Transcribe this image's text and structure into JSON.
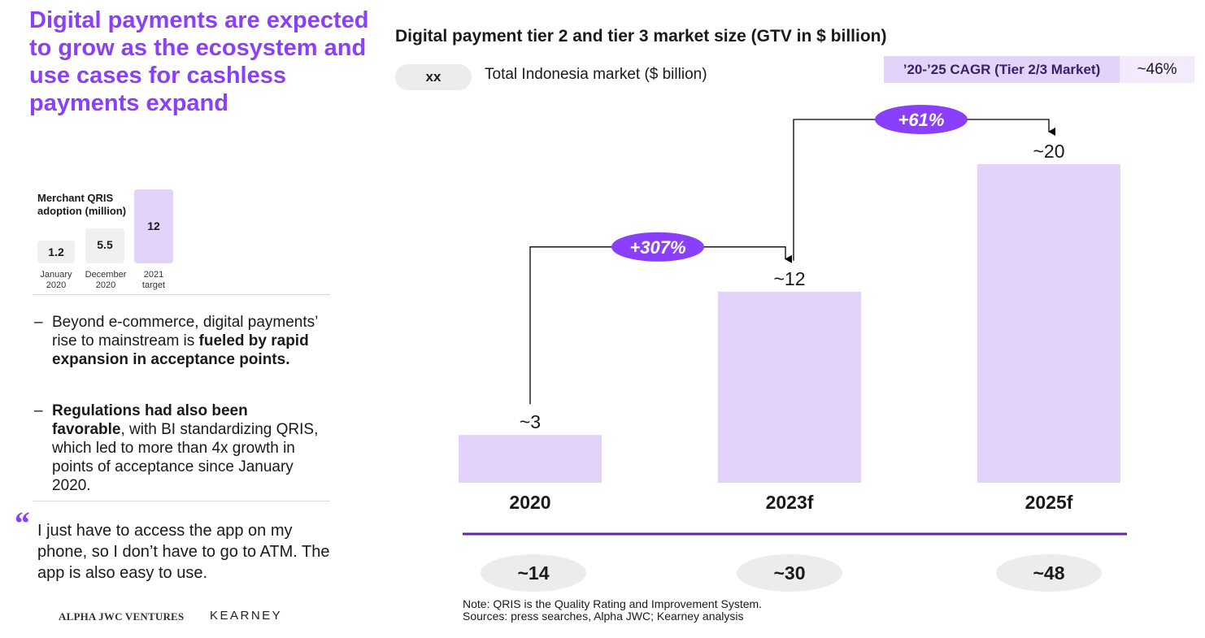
{
  "headline": "Digital payments are expected to grow as the ecosystem and use cases for cashless payments expand",
  "qris": {
    "label": "Merchant QRIS adoption (million)",
    "bars": [
      {
        "value": "1.2",
        "caption_1": "January",
        "caption_2": "2020"
      },
      {
        "value": "5.5",
        "caption_1": "December",
        "caption_2": "2020"
      },
      {
        "value": "12",
        "caption_1": "2021",
        "caption_2": "target"
      }
    ]
  },
  "bullets": [
    {
      "dash": "–",
      "parts": [
        "Beyond e-commerce, digital payments’ rise to mainstream is ",
        "fueled by rapid expansion in acceptance points.",
        ""
      ]
    },
    {
      "dash": "–",
      "parts": [
        "",
        "Regulations had also been favorable",
        ", with BI standardizing QRIS, which led to more than 4x growth in points of acceptance since January 2020."
      ]
    }
  ],
  "quote": {
    "mark": "“",
    "text": "I just have to access the app on my phone, so I don’t have to go to ATM. The app is also easy to use."
  },
  "logos": {
    "alpha": "ALPHA JWC VENTURES",
    "kearney": "KEARNEY"
  },
  "legend": {
    "pill": "xx",
    "text": "Total Indonesia market ($ billion)"
  },
  "cagr": {
    "label": "’20-’25 CAGR (Tier 2/3 Market)",
    "value": "~46%"
  },
  "note": {
    "line1": "Note: QRIS is the Quality Rating and Improvement System.",
    "line2": "Sources: press searches, Alpha JWC; Kearney analysis"
  },
  "chart_data": {
    "type": "bar",
    "title": "Digital payment tier 2 and tier 3 market size (GTV in $ billion)",
    "categories": [
      "2020",
      "2023f",
      "2025f"
    ],
    "values": [
      3,
      12,
      20
    ],
    "value_labels": [
      "~3",
      "~12",
      "~20"
    ],
    "totals": [
      "~14",
      "~30",
      "~48"
    ],
    "growth": [
      {
        "from": 0,
        "to": 1,
        "label": "+307%"
      },
      {
        "from": 1,
        "to": 2,
        "label": "+61%"
      }
    ],
    "bar_color": "#e3d3fb",
    "accent_color": "#8a3ffc",
    "axis_color": "#5b2a9c",
    "grid": false,
    "legend": "none"
  }
}
